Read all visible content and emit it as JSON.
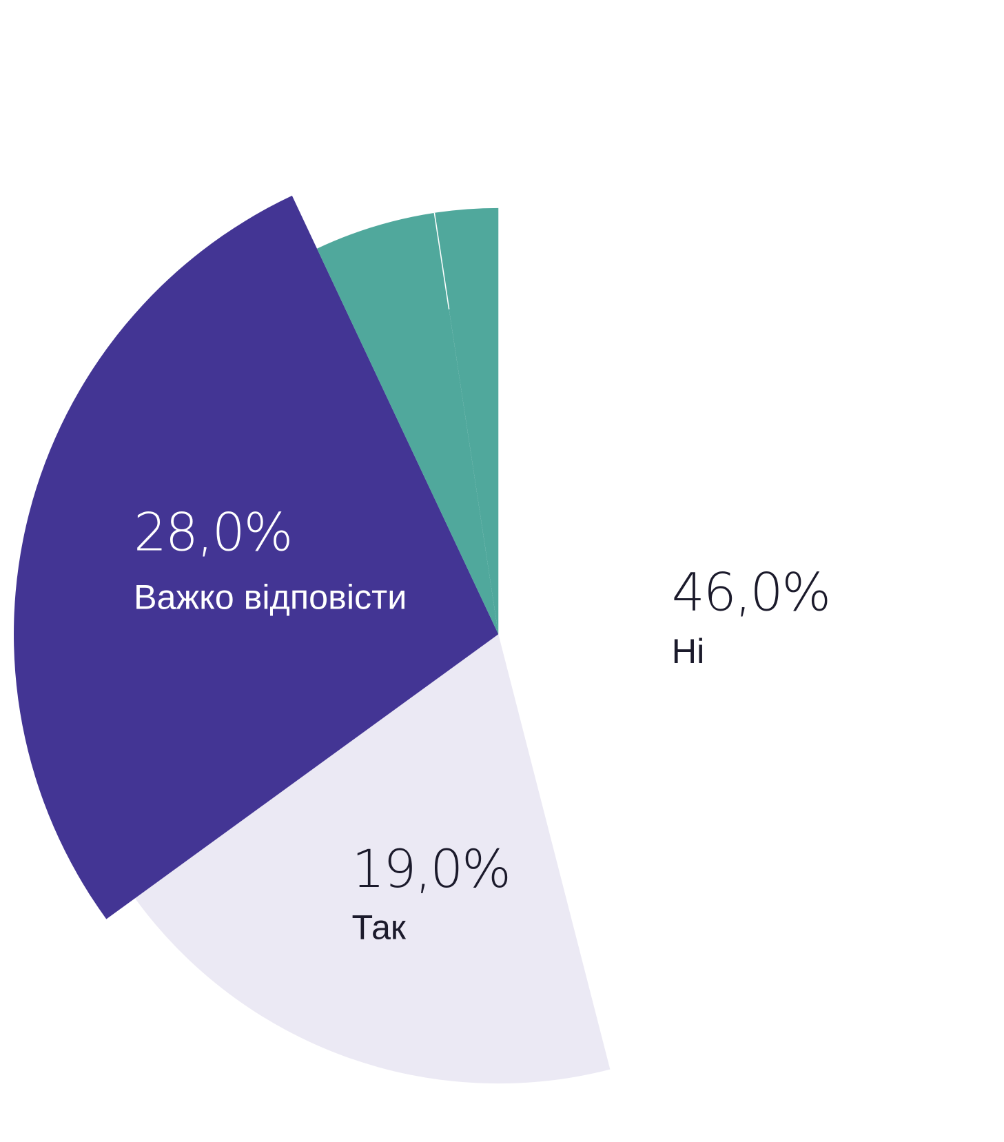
{
  "chart_data": {
    "type": "pie",
    "start": "top",
    "direction": "clockwise",
    "categories": [
      "Ні",
      "Так",
      "Важко відповісти",
      null,
      null
    ],
    "values": [
      46,
      19,
      28,
      4.6,
      2.4
    ],
    "value_labels": [
      "46,0%",
      "19,0%",
      "28,0%",
      null,
      null
    ],
    "colors": [
      "#ffffff",
      "#ebe9f4",
      "#433594",
      "#50a89c",
      "#50a89c"
    ]
  }
}
